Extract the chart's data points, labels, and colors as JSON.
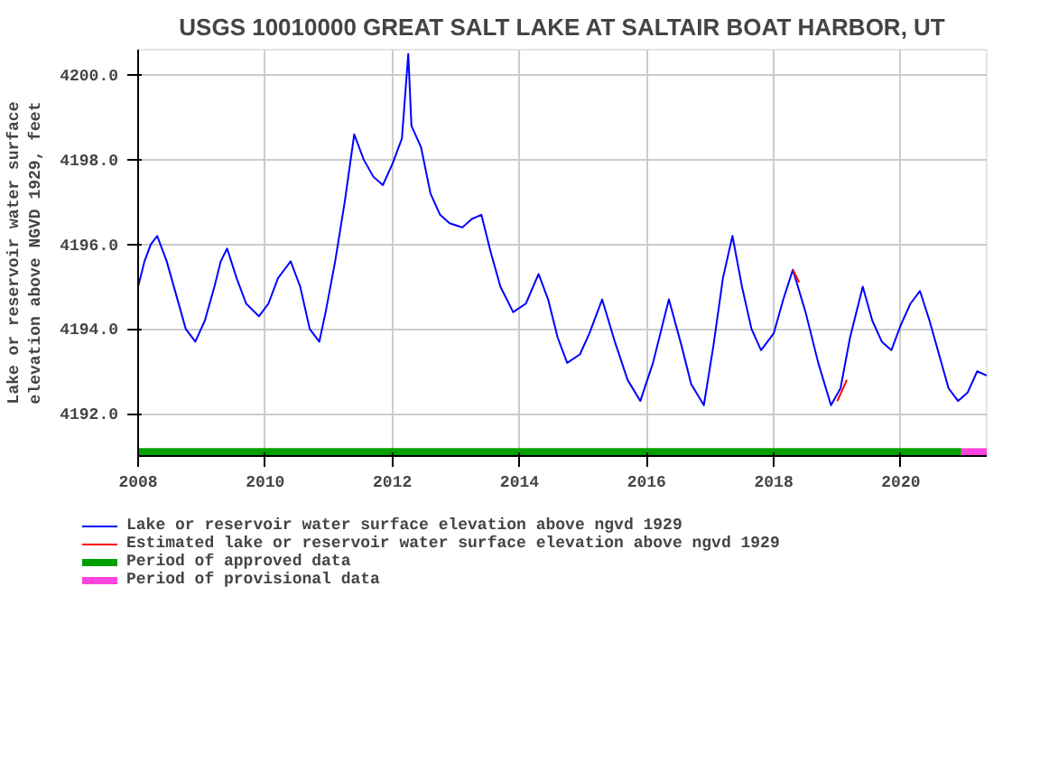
{
  "chart_data": {
    "type": "line",
    "title": "USGS 10010000 GREAT SALT LAKE AT SALTAIR BOAT HARBOR, UT",
    "ylabel": "Lake or reservoir water surface\nelevation above NGVD 1929, feet",
    "xlim": [
      2008,
      2021.35
    ],
    "ylim": [
      4191.0,
      4200.6
    ],
    "xticks": [
      2008,
      2010,
      2012,
      2014,
      2016,
      2018,
      2020
    ],
    "yticks": [
      {
        "value": 4192,
        "label": "4192.0"
      },
      {
        "value": 4194,
        "label": "4194.0"
      },
      {
        "value": 4196,
        "label": "4196.0"
      },
      {
        "value": 4198,
        "label": "4198.0"
      },
      {
        "value": 4200,
        "label": "4200.0"
      }
    ],
    "grid": true,
    "legend": "bottom",
    "series": [
      {
        "name": "Lake or reservoir water surface elevation above ngvd 1929",
        "color": "#0000ff",
        "x": [
          2008.0,
          2008.1,
          2008.2,
          2008.3,
          2008.45,
          2008.6,
          2008.75,
          2008.9,
          2009.05,
          2009.2,
          2009.3,
          2009.4,
          2009.55,
          2009.7,
          2009.9,
          2010.05,
          2010.2,
          2010.3,
          2010.4,
          2010.55,
          2010.7,
          2010.85,
          2010.95,
          2011.1,
          2011.25,
          2011.4,
          2011.55,
          2011.7,
          2011.85,
          2012.0,
          2012.15,
          2012.25,
          2012.3,
          2012.45,
          2012.6,
          2012.75,
          2012.9,
          2013.1,
          2013.25,
          2013.4,
          2013.55,
          2013.7,
          2013.9,
          2014.1,
          2014.3,
          2014.45,
          2014.6,
          2014.75,
          2014.95,
          2015.1,
          2015.3,
          2015.5,
          2015.7,
          2015.9,
          2016.1,
          2016.35,
          2016.55,
          2016.7,
          2016.9,
          2017.05,
          2017.2,
          2017.35,
          2017.5,
          2017.65,
          2017.8,
          2018.0,
          2018.15,
          2018.3,
          2018.5,
          2018.7,
          2018.9,
          2019.05,
          2019.2,
          2019.4,
          2019.55,
          2019.7,
          2019.85,
          2020.0,
          2020.15,
          2020.3,
          2020.45,
          2020.6,
          2020.75,
          2020.9,
          2021.05,
          2021.2,
          2021.35
        ],
        "values": [
          4195.0,
          4195.6,
          4196.0,
          4196.2,
          4195.6,
          4194.8,
          4194.0,
          4193.7,
          4194.2,
          4195.0,
          4195.6,
          4195.9,
          4195.2,
          4194.6,
          4194.3,
          4194.6,
          4195.2,
          4195.4,
          4195.6,
          4195.0,
          4194.0,
          4193.7,
          4194.4,
          4195.6,
          4197.0,
          4198.6,
          4198.0,
          4197.6,
          4197.4,
          4197.9,
          4198.5,
          4200.5,
          4198.8,
          4198.3,
          4197.2,
          4196.7,
          4196.5,
          4196.4,
          4196.6,
          4196.7,
          4195.8,
          4195.0,
          4194.4,
          4194.6,
          4195.3,
          4194.7,
          4193.8,
          4193.2,
          4193.4,
          4193.9,
          4194.7,
          4193.7,
          4192.8,
          4192.3,
          4193.2,
          4194.7,
          4193.6,
          4192.7,
          4192.2,
          4193.6,
          4195.2,
          4196.2,
          4195.0,
          4194.0,
          4193.5,
          4193.9,
          4194.7,
          4195.4,
          4194.4,
          4193.2,
          4192.2,
          4192.6,
          4193.8,
          4195.0,
          4194.2,
          4193.7,
          4193.5,
          4194.1,
          4194.6,
          4194.9,
          4194.2,
          4193.4,
          4192.6,
          4192.3,
          4192.5,
          4193.0,
          4192.9
        ]
      },
      {
        "name": "Estimated lake or reservoir water surface elevation above ngvd 1929",
        "color": "#ff0000",
        "x": [
          2018.3,
          2018.4,
          2018.7,
          2019.0,
          2019.15
        ],
        "values": [
          4195.4,
          4195.1,
          null,
          4192.3,
          4192.8
        ]
      },
      {
        "name": "Period of approved data",
        "color": "#00a000",
        "x": [
          2008.0,
          2020.95
        ],
        "values": [
          4191.1,
          4191.1
        ]
      },
      {
        "name": "Period of provisional data",
        "color": "#ff44dd",
        "x": [
          2020.95,
          2021.35
        ],
        "values": [
          4191.1,
          4191.1
        ]
      }
    ]
  }
}
